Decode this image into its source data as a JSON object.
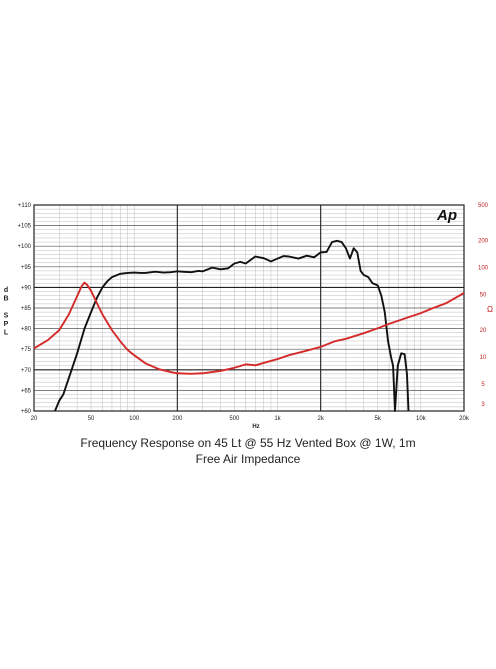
{
  "chart_data": {
    "type": "line",
    "caption_line1": "Frequency Response on 45 Lt @ 55 Hz Vented Box @ 1W, 1m",
    "caption_line2": "Free Air Impedance",
    "logo_text": "Ap",
    "x_axis": {
      "label": "Hz",
      "scale": "log",
      "range": [
        20,
        20000
      ],
      "ticks": [
        {
          "value": 20,
          "label": "20"
        },
        {
          "value": 50,
          "label": "50"
        },
        {
          "value": 100,
          "label": "100"
        },
        {
          "value": 200,
          "label": "200"
        },
        {
          "value": 500,
          "label": "500"
        },
        {
          "value": 1000,
          "label": "1k"
        },
        {
          "value": 2000,
          "label": "2k"
        },
        {
          "value": 5000,
          "label": "5k"
        },
        {
          "value": 10000,
          "label": "10k"
        },
        {
          "value": 20000,
          "label": "20k"
        }
      ]
    },
    "y_left": {
      "label_chars": [
        "d",
        "B",
        "",
        "S",
        "P",
        "L"
      ],
      "range": [
        60,
        110
      ],
      "ticks": [
        {
          "value": 110,
          "label": "+110"
        },
        {
          "value": 105,
          "label": "+105"
        },
        {
          "value": 100,
          "label": "+100"
        },
        {
          "value": 95,
          "label": "+95"
        },
        {
          "value": 90,
          "label": "+90"
        },
        {
          "value": 85,
          "label": "+85"
        },
        {
          "value": 80,
          "label": "+80"
        },
        {
          "value": 75,
          "label": "+75"
        },
        {
          "value": 70,
          "label": "+70"
        },
        {
          "value": 65,
          "label": "+65"
        },
        {
          "value": 60,
          "label": "+60"
        }
      ]
    },
    "y_right": {
      "label": "Ω",
      "scale": "log",
      "range": [
        2.5,
        500
      ],
      "ticks": [
        {
          "value": 500,
          "label": "500"
        },
        {
          "value": 200,
          "label": "200"
        },
        {
          "value": 100,
          "label": "100"
        },
        {
          "value": 50,
          "label": "50"
        },
        {
          "value": 20,
          "label": "20"
        },
        {
          "value": 10,
          "label": "10"
        },
        {
          "value": 5,
          "label": "5"
        },
        {
          "value": 3,
          "label": "3"
        }
      ]
    },
    "grid": true,
    "colors": {
      "spl": "#111111",
      "impedance": "#d42a2a",
      "grid": "#555555",
      "minor_grid": "#bdbdbd"
    },
    "series": [
      {
        "axis": "left",
        "points": [
          [
            28,
            60
          ],
          [
            30,
            62.5
          ],
          [
            32,
            64
          ],
          [
            35,
            68
          ],
          [
            40,
            74
          ],
          [
            45,
            80
          ],
          [
            50,
            84
          ],
          [
            55,
            87.5
          ],
          [
            60,
            90
          ],
          [
            65,
            91.5
          ],
          [
            70,
            92.5
          ],
          [
            80,
            93.3
          ],
          [
            90,
            93.5
          ],
          [
            100,
            93.6
          ],
          [
            110,
            93.5
          ],
          [
            120,
            93.5
          ],
          [
            140,
            93.8
          ],
          [
            160,
            93.6
          ],
          [
            180,
            93.7
          ],
          [
            200,
            93.9
          ],
          [
            220,
            93.8
          ],
          [
            250,
            93.7
          ],
          [
            280,
            94.0
          ],
          [
            300,
            93.9
          ],
          [
            350,
            94.8
          ],
          [
            400,
            94.4
          ],
          [
            450,
            94.6
          ],
          [
            500,
            95.8
          ],
          [
            550,
            96.2
          ],
          [
            600,
            95.8
          ],
          [
            700,
            97.5
          ],
          [
            800,
            97.1
          ],
          [
            900,
            96.3
          ],
          [
            1000,
            97.0
          ],
          [
            1100,
            97.6
          ],
          [
            1200,
            97.5
          ],
          [
            1400,
            97.0
          ],
          [
            1600,
            97.7
          ],
          [
            1800,
            97.3
          ],
          [
            2000,
            98.5
          ],
          [
            2200,
            98.6
          ],
          [
            2400,
            101.0
          ],
          [
            2600,
            101.3
          ],
          [
            2800,
            101.0
          ],
          [
            3000,
            99.5
          ],
          [
            3200,
            97.0
          ],
          [
            3400,
            99.5
          ],
          [
            3600,
            98.5
          ],
          [
            3800,
            94.0
          ],
          [
            4000,
            93.0
          ],
          [
            4300,
            92.5
          ],
          [
            4600,
            91.0
          ],
          [
            5000,
            90.5
          ],
          [
            5300,
            88.0
          ],
          [
            5600,
            84.0
          ],
          [
            5900,
            77.0
          ],
          [
            6200,
            73.0
          ],
          [
            6400,
            71.0
          ],
          [
            6600,
            60.0
          ],
          [
            6900,
            71.0
          ],
          [
            7300,
            74.0
          ],
          [
            7700,
            73.8
          ],
          [
            8000,
            69.0
          ],
          [
            8200,
            60.0
          ]
        ]
      },
      {
        "axis": "right",
        "points": [
          [
            20,
            12.5
          ],
          [
            25,
            15.5
          ],
          [
            30,
            20
          ],
          [
            35,
            30
          ],
          [
            40,
            48
          ],
          [
            43,
            62
          ],
          [
            45,
            68
          ],
          [
            47,
            64
          ],
          [
            50,
            55
          ],
          [
            55,
            40
          ],
          [
            60,
            30
          ],
          [
            70,
            20
          ],
          [
            80,
            15
          ],
          [
            90,
            12
          ],
          [
            100,
            10.5
          ],
          [
            120,
            8.5
          ],
          [
            150,
            7.3
          ],
          [
            180,
            6.8
          ],
          [
            200,
            6.6
          ],
          [
            250,
            6.5
          ],
          [
            300,
            6.6
          ],
          [
            400,
            7.0
          ],
          [
            500,
            7.6
          ],
          [
            600,
            8.3
          ],
          [
            700,
            8.1
          ],
          [
            800,
            8.6
          ],
          [
            1000,
            9.5
          ],
          [
            1200,
            10.5
          ],
          [
            1500,
            11.5
          ],
          [
            2000,
            13.0
          ],
          [
            2500,
            15.0
          ],
          [
            3000,
            16.0
          ],
          [
            4000,
            18.5
          ],
          [
            5000,
            21.0
          ],
          [
            6000,
            23.5
          ],
          [
            8000,
            27.5
          ],
          [
            10000,
            31.0
          ],
          [
            12000,
            35.0
          ],
          [
            15000,
            40.0
          ],
          [
            20000,
            52.0
          ]
        ]
      }
    ]
  }
}
